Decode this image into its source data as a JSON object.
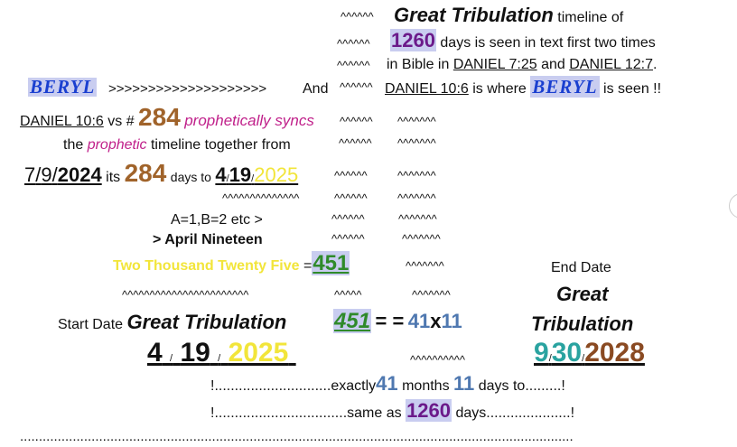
{
  "carets": {
    "r1": "^^^^^^",
    "r2": "^^^^^^",
    "r3": "^^^^^^",
    "r4": "^^^^^^",
    "r5a": "^^^^^^",
    "r5b": "^^^^^^^",
    "r6a": "^^^^^^",
    "r6b": "^^^^^^^",
    "r7b": "^^^^^^^",
    "r7a": "^^^^^^",
    "r8long": "^^^^^^^^^^^^^^",
    "r8a": "^^^^^^",
    "r8b": "^^^^^^^",
    "r9a": "^^^^^^",
    "r9b": "^^^^^^^",
    "r10a": "^^^^^^",
    "r10b": "^^^^^^^",
    "r11": "^^^^^^^",
    "r12long": "^^^^^^^^^^^^^^^^^^^^^^^",
    "r12a": "^^^^^",
    "r12b": "^^^^^^^",
    "r14": "^^^^^^^^^^"
  },
  "line1": {
    "title": "Great Tribulation",
    "rest": "timeline of"
  },
  "line2": {
    "num": "1260",
    "rest": "days is seen in text first two times"
  },
  "line3": {
    "pre": "in Bible in",
    "ref1": "DANIEL 7:25",
    "and": "and",
    "ref2": "DANIEL 12:7",
    "dot": "."
  },
  "line4": {
    "beryl1": "BERYL",
    "arrows": ">>>>>>>>>>>>>>>>>>>>",
    "and": "And",
    "ref": "DANIEL 10:6",
    "mid": "is where",
    "beryl2": "BERYL",
    "end": "is seen !!"
  },
  "line5": {
    "ref": "DANIEL 10:6",
    "vs": "vs #",
    "num": "284",
    "syncs": "prophetically syncs"
  },
  "line6": {
    "the": "the",
    "prophetic": "prophetic",
    "rest": "timeline together from"
  },
  "line7": {
    "m": "7",
    "s1": "/",
    "d": "9",
    "s2": "/",
    "y": "2024",
    "its": "its",
    "num": "284",
    "daysto": "days to",
    "m2": "4",
    "s3": "/",
    "d2": "19",
    "s4": "/",
    "y2": "2025"
  },
  "line9": {
    "text": "A=1,B=2 etc >"
  },
  "line10": {
    "text": "> April Nineteen"
  },
  "line11": {
    "words": "Two Thousand Twenty Five",
    "eq": "=",
    "num": "451",
    "enddate": "End Date"
  },
  "line12": {
    "great": "Great"
  },
  "line13": {
    "start": "Start Date",
    "title": "Great Tribulation",
    "num": "451",
    "eqeq": "= =",
    "a": "41",
    "x": "x",
    "b": "11",
    "trib": "Tribulation"
  },
  "line14": {
    "m": "4",
    "s1": "/",
    "d": "19",
    "s2": "/",
    "y": "2025",
    "m2": "9",
    "s3": "/",
    "d2": "30",
    "s4": "/",
    "y2": "2028"
  },
  "line15": {
    "pre": "!.............................exactly",
    "a": "41",
    "months": "months",
    "b": "11",
    "post": "days to.........!"
  },
  "line16": {
    "pre": "!.................................same as",
    "num": "1260",
    "post": "days.....................!"
  },
  "line17": {
    "dots": "..................................................................................................................................................."
  }
}
